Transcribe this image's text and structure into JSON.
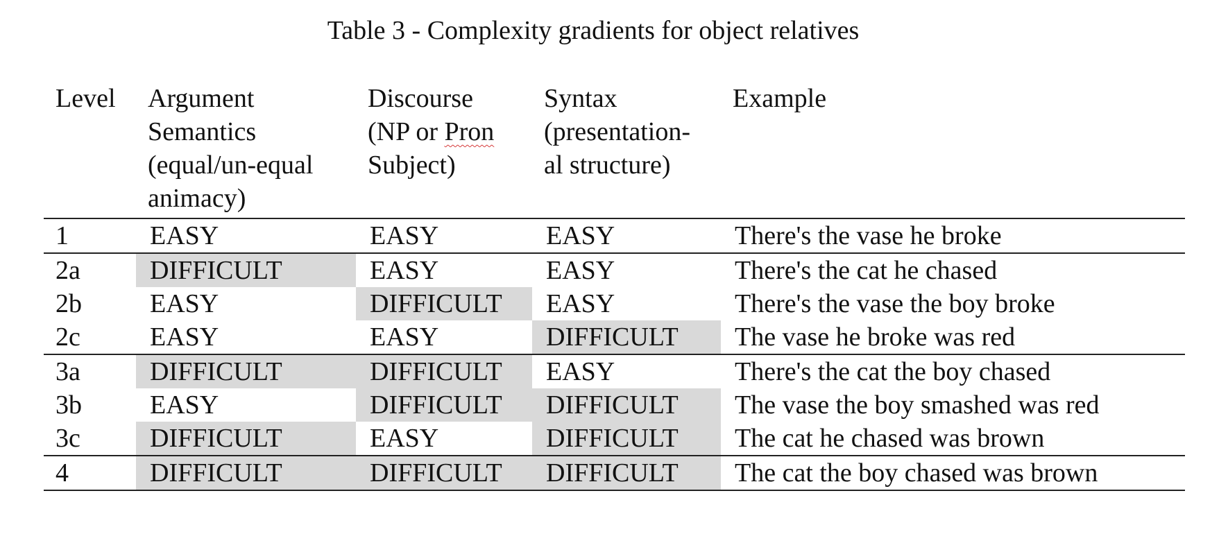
{
  "caption": "Table 3 - Complexity gradients for object relatives",
  "headers": {
    "level": "Level",
    "argument_l1": "Argument",
    "argument_l2": "Semantics",
    "argument_l3": "(equal/un-equal",
    "argument_l4": "animacy)",
    "discourse_l1": "Discourse",
    "discourse_l2a": "(NP or ",
    "discourse_l2b": "Pron",
    "discourse_l3": "Subject)",
    "syntax_l1": "Syntax",
    "syntax_l2": "(presentation-",
    "syntax_l3": "al structure)",
    "example": "Example"
  },
  "rows": [
    {
      "level": "1",
      "argument": "EASY",
      "discourse": "EASY",
      "syntax": "EASY",
      "example": "There's the vase he broke"
    },
    {
      "level": "2a",
      "argument": "DIFFICULT",
      "discourse": "EASY",
      "syntax": "EASY",
      "example": "There's the cat he chased"
    },
    {
      "level": "2b",
      "argument": "EASY",
      "discourse": "DIFFICULT",
      "syntax": "EASY",
      "example": "There's the vase the boy broke"
    },
    {
      "level": "2c",
      "argument": "EASY",
      "discourse": "EASY",
      "syntax": "DIFFICULT",
      "example": "The vase he broke was red"
    },
    {
      "level": "3a",
      "argument": "DIFFICULT",
      "discourse": "DIFFICULT",
      "syntax": "EASY",
      "example": "There's the cat the boy chased"
    },
    {
      "level": "3b",
      "argument": "EASY",
      "discourse": "DIFFICULT",
      "syntax": "DIFFICULT",
      "example": "The vase the boy smashed was red"
    },
    {
      "level": "3c",
      "argument": "DIFFICULT",
      "discourse": "EASY",
      "syntax": "DIFFICULT",
      "example": "The cat he chased was brown"
    },
    {
      "level": "4",
      "argument": "DIFFICULT",
      "discourse": "DIFFICULT",
      "syntax": "DIFFICULT",
      "example": "The cat the boy chased was brown"
    }
  ],
  "colors": {
    "difficult_shading": "#d9d9d9",
    "rule": "#222222",
    "spellcheck_underline": "#d63a3a"
  }
}
